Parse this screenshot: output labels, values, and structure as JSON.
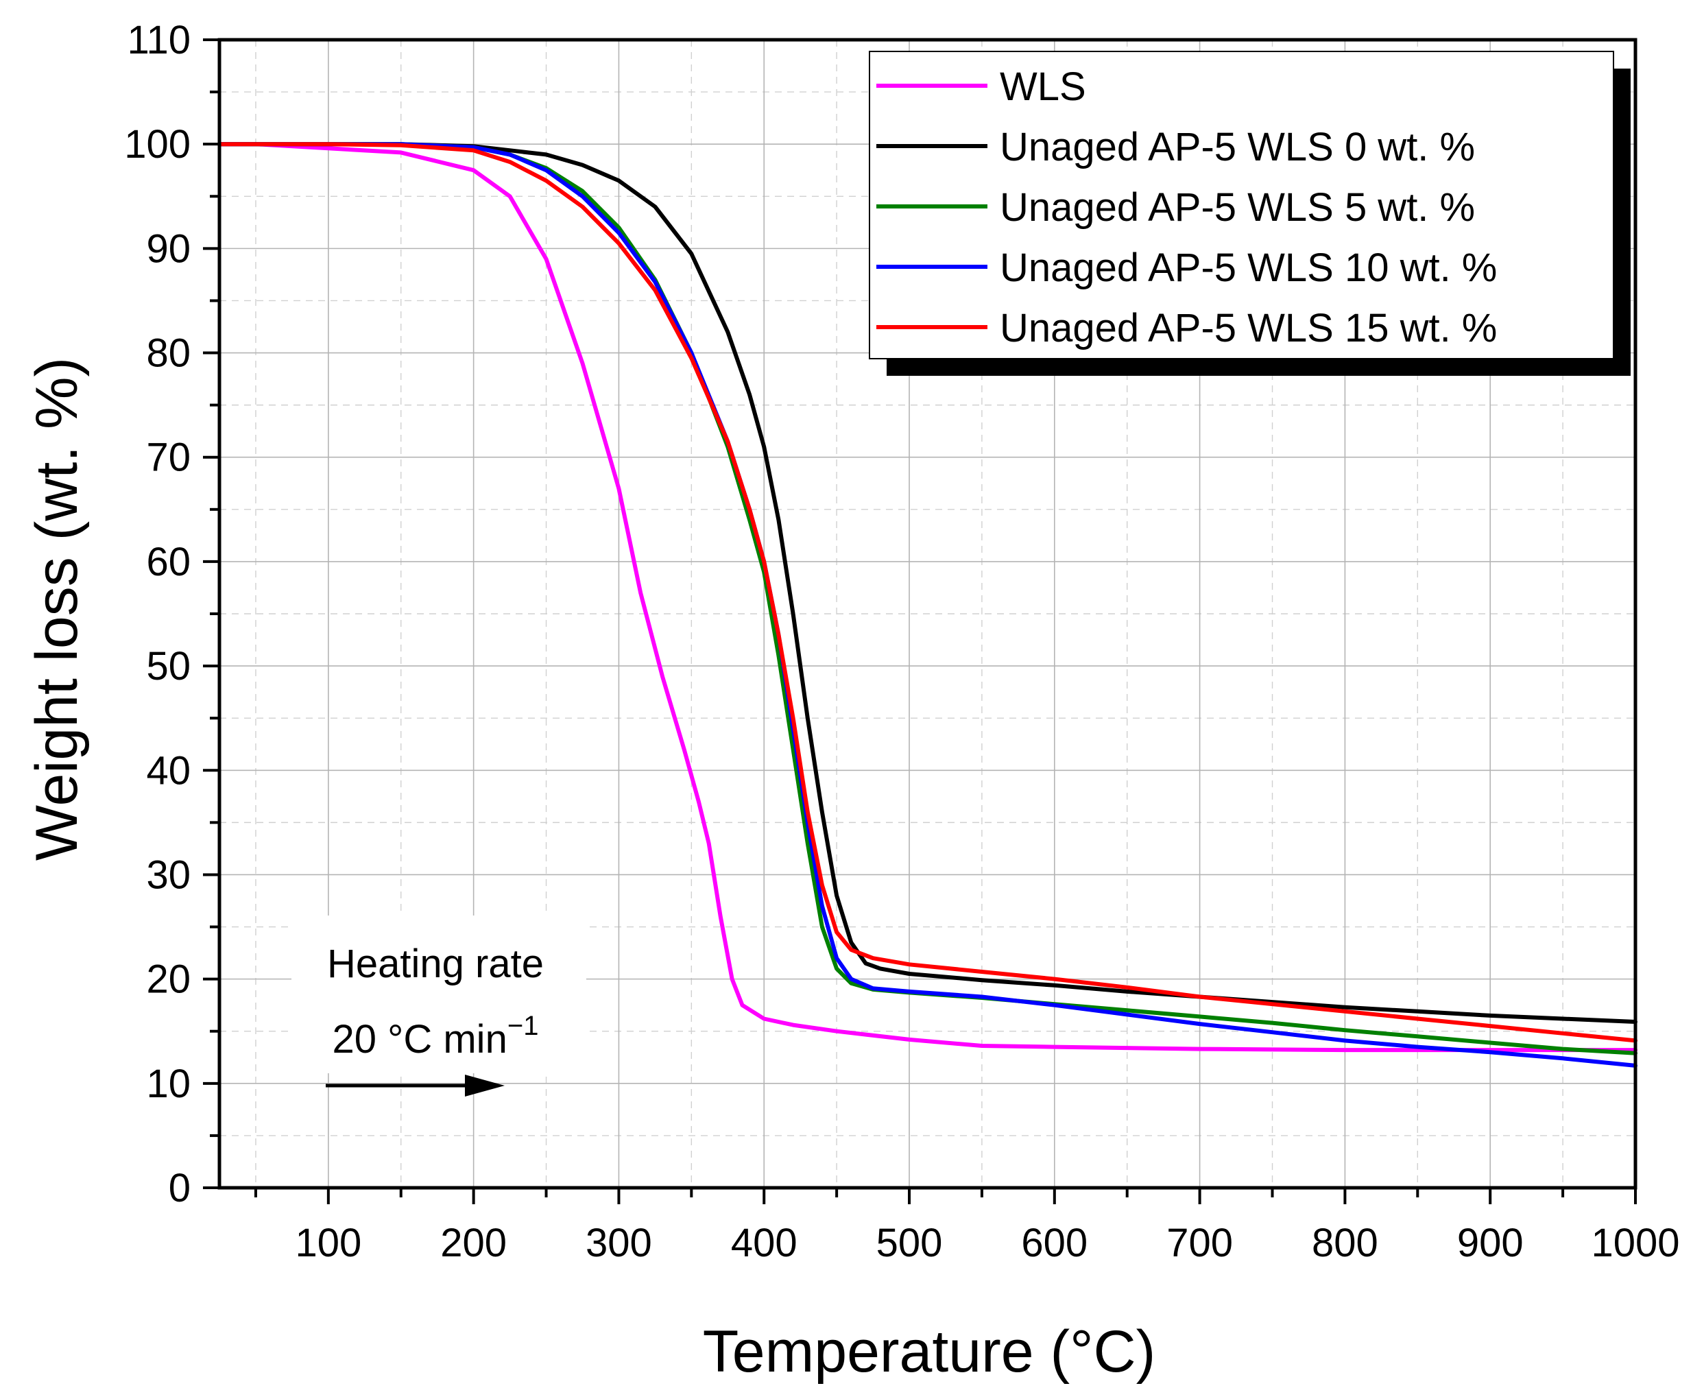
{
  "chart_data": {
    "type": "line",
    "title": "",
    "xlabel": "Temperature (°C)",
    "ylabel": "Weight loss (wt. %)",
    "xlim": [
      25,
      1000
    ],
    "ylim": [
      0,
      110
    ],
    "xticks": [
      100,
      200,
      300,
      400,
      500,
      600,
      700,
      800,
      900,
      1000
    ],
    "yticks": [
      0,
      10,
      20,
      30,
      40,
      50,
      60,
      70,
      80,
      90,
      100,
      110
    ],
    "grid": true,
    "legend_position": "top-right",
    "series": [
      {
        "name": "WLS",
        "color": "#ff00ff",
        "points": [
          [
            25,
            100
          ],
          [
            50,
            100
          ],
          [
            100,
            99.6
          ],
          [
            150,
            99.2
          ],
          [
            200,
            97.5
          ],
          [
            225,
            95
          ],
          [
            250,
            89
          ],
          [
            275,
            79
          ],
          [
            300,
            67
          ],
          [
            315,
            57
          ],
          [
            330,
            49
          ],
          [
            345,
            42
          ],
          [
            355,
            37
          ],
          [
            362,
            33
          ],
          [
            370,
            26
          ],
          [
            378,
            20
          ],
          [
            385,
            17.5
          ],
          [
            400,
            16.2
          ],
          [
            420,
            15.6
          ],
          [
            450,
            15
          ],
          [
            500,
            14.2
          ],
          [
            550,
            13.6
          ],
          [
            600,
            13.5
          ],
          [
            700,
            13.3
          ],
          [
            800,
            13.2
          ],
          [
            900,
            13.2
          ],
          [
            1000,
            13.2
          ]
        ]
      },
      {
        "name": "Unaged AP-5 WLS 0 wt. %",
        "color": "#000000",
        "points": [
          [
            25,
            100
          ],
          [
            100,
            100
          ],
          [
            150,
            100
          ],
          [
            200,
            99.8
          ],
          [
            250,
            99
          ],
          [
            275,
            98
          ],
          [
            300,
            96.5
          ],
          [
            325,
            94
          ],
          [
            350,
            89.5
          ],
          [
            375,
            82
          ],
          [
            390,
            76
          ],
          [
            400,
            71
          ],
          [
            410,
            64
          ],
          [
            420,
            55
          ],
          [
            430,
            45
          ],
          [
            440,
            36
          ],
          [
            450,
            28
          ],
          [
            460,
            23.5
          ],
          [
            470,
            21.5
          ],
          [
            480,
            21
          ],
          [
            500,
            20.5
          ],
          [
            550,
            19.9
          ],
          [
            600,
            19.4
          ],
          [
            650,
            18.8
          ],
          [
            700,
            18.3
          ],
          [
            750,
            17.8
          ],
          [
            800,
            17.3
          ],
          [
            850,
            16.9
          ],
          [
            900,
            16.5
          ],
          [
            950,
            16.2
          ],
          [
            1000,
            15.9
          ]
        ]
      },
      {
        "name": "Unaged AP-5 WLS 5 wt. %",
        "color": "#008000",
        "points": [
          [
            25,
            100
          ],
          [
            100,
            100
          ],
          [
            150,
            100
          ],
          [
            200,
            99.7
          ],
          [
            225,
            99
          ],
          [
            250,
            97.7
          ],
          [
            275,
            95.5
          ],
          [
            300,
            92
          ],
          [
            325,
            87
          ],
          [
            350,
            80
          ],
          [
            375,
            71
          ],
          [
            390,
            64
          ],
          [
            400,
            59
          ],
          [
            410,
            51
          ],
          [
            420,
            42
          ],
          [
            430,
            33
          ],
          [
            440,
            25
          ],
          [
            450,
            21
          ],
          [
            460,
            19.6
          ],
          [
            475,
            19
          ],
          [
            500,
            18.7
          ],
          [
            550,
            18.2
          ],
          [
            600,
            17.6
          ],
          [
            650,
            17
          ],
          [
            700,
            16.4
          ],
          [
            750,
            15.8
          ],
          [
            800,
            15.1
          ],
          [
            850,
            14.5
          ],
          [
            900,
            13.9
          ],
          [
            950,
            13.3
          ],
          [
            1000,
            12.9
          ]
        ]
      },
      {
        "name": "Unaged AP-5 WLS 10 wt. %",
        "color": "#0000ff",
        "points": [
          [
            25,
            100
          ],
          [
            100,
            100
          ],
          [
            150,
            100
          ],
          [
            200,
            99.7
          ],
          [
            225,
            99
          ],
          [
            250,
            97.5
          ],
          [
            275,
            95
          ],
          [
            300,
            91.5
          ],
          [
            325,
            86.8
          ],
          [
            350,
            80
          ],
          [
            375,
            71.5
          ],
          [
            390,
            65
          ],
          [
            400,
            60
          ],
          [
            410,
            53
          ],
          [
            420,
            44
          ],
          [
            430,
            35
          ],
          [
            440,
            27
          ],
          [
            450,
            22
          ],
          [
            460,
            20
          ],
          [
            475,
            19.1
          ],
          [
            500,
            18.8
          ],
          [
            550,
            18.3
          ],
          [
            600,
            17.5
          ],
          [
            650,
            16.6
          ],
          [
            700,
            15.7
          ],
          [
            750,
            14.9
          ],
          [
            800,
            14.1
          ],
          [
            850,
            13.5
          ],
          [
            900,
            13
          ],
          [
            950,
            12.4
          ],
          [
            1000,
            11.7
          ]
        ]
      },
      {
        "name": "Unaged AP-5 WLS 15 wt. %",
        "color": "#ff0000",
        "points": [
          [
            25,
            100
          ],
          [
            100,
            100
          ],
          [
            150,
            99.9
          ],
          [
            200,
            99.4
          ],
          [
            225,
            98.3
          ],
          [
            250,
            96.5
          ],
          [
            275,
            94
          ],
          [
            300,
            90.5
          ],
          [
            325,
            86
          ],
          [
            350,
            79.5
          ],
          [
            375,
            71.5
          ],
          [
            390,
            65
          ],
          [
            400,
            60
          ],
          [
            410,
            53
          ],
          [
            420,
            45
          ],
          [
            430,
            36
          ],
          [
            440,
            29
          ],
          [
            450,
            24.5
          ],
          [
            460,
            22.8
          ],
          [
            475,
            22
          ],
          [
            500,
            21.4
          ],
          [
            550,
            20.7
          ],
          [
            600,
            20
          ],
          [
            650,
            19.2
          ],
          [
            700,
            18.3
          ],
          [
            750,
            17.6
          ],
          [
            800,
            16.9
          ],
          [
            850,
            16.2
          ],
          [
            900,
            15.5
          ],
          [
            950,
            14.8
          ],
          [
            1000,
            14.1
          ]
        ]
      }
    ],
    "annotations": {
      "line1": "Heating rate",
      "line2_prefix": "20 °C min",
      "line2_sup": "−1"
    }
  }
}
